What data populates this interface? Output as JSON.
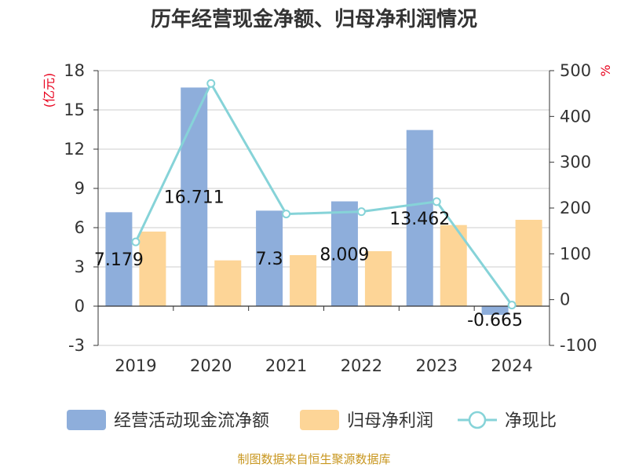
{
  "chart_data": {
    "type": "bar",
    "title": "历年经营现金净额、归母净利润情况",
    "categories": [
      "2019",
      "2020",
      "2021",
      "2022",
      "2023",
      "2024"
    ],
    "series": [
      {
        "name": "经营活动现金流净额",
        "type": "bar",
        "axis": "left",
        "color": "#8eaedb",
        "values": [
          7.179,
          16.711,
          7.3,
          8.009,
          13.462,
          -0.665
        ],
        "labels": [
          "7.179",
          "16.711",
          "7.3",
          "8.009",
          "13.462",
          "-0.665"
        ]
      },
      {
        "name": "归母净利润",
        "type": "bar",
        "axis": "left",
        "color": "#fdd597",
        "values": [
          5.7,
          3.5,
          3.9,
          4.2,
          6.2,
          6.6
        ]
      },
      {
        "name": "净现比",
        "type": "line",
        "axis": "right",
        "color": "#86d3d8",
        "values": [
          126,
          472,
          187,
          192,
          214,
          -12
        ]
      }
    ],
    "y_left": {
      "unit": "(亿元)",
      "ylim": [
        -3,
        18
      ],
      "ticks": [
        "18",
        "15",
        "12",
        "9",
        "6",
        "3",
        "0",
        "-3"
      ]
    },
    "y_right": {
      "unit": "%",
      "ylim": [
        -100,
        500
      ],
      "ticks": [
        "500",
        "400",
        "300",
        "200",
        "100",
        "0",
        "-100"
      ]
    },
    "grid": true,
    "legend_position": "bottom",
    "source": "制图数据来自恒生聚源数据库"
  }
}
